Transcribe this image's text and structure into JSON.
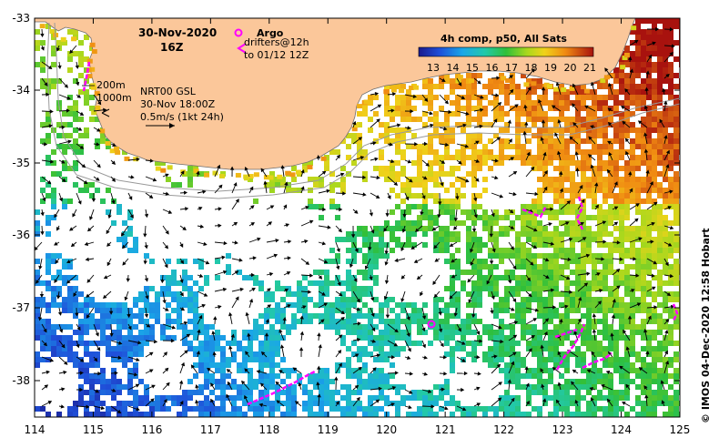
{
  "header": {
    "date": "30-Nov-2020",
    "hour": "16Z"
  },
  "legend": {
    "argo_label": "Argo",
    "drifters_line1": "drifters@12h",
    "drifters_line2": "to 01/12 12Z"
  },
  "isobaths": {
    "shallow": "200m",
    "deep": "1000m"
  },
  "model_info": {
    "line1": "NRT00 GSL",
    "line2": "30-Nov 18:00Z",
    "line3": "0.5m/s (1kt 24h)"
  },
  "colorbar": {
    "title": "4h comp, p50, All Sats",
    "ticks": [
      "13",
      "14",
      "15",
      "16",
      "17",
      "18",
      "19",
      "20",
      "21"
    ]
  },
  "credit": "© IMOS 04-Dec-2020 12:58 Hobart",
  "axes": {
    "x_ticks": [
      "114",
      "115",
      "116",
      "117",
      "118",
      "119",
      "120",
      "121",
      "122",
      "123",
      "124",
      "125"
    ],
    "y_ticks": [
      "-33",
      "-34",
      "-35",
      "-36",
      "-37",
      "-38"
    ]
  },
  "colors": {
    "land": "#fbc79a",
    "argo": "#ff00ff",
    "drifter": "#ff00ff"
  }
}
